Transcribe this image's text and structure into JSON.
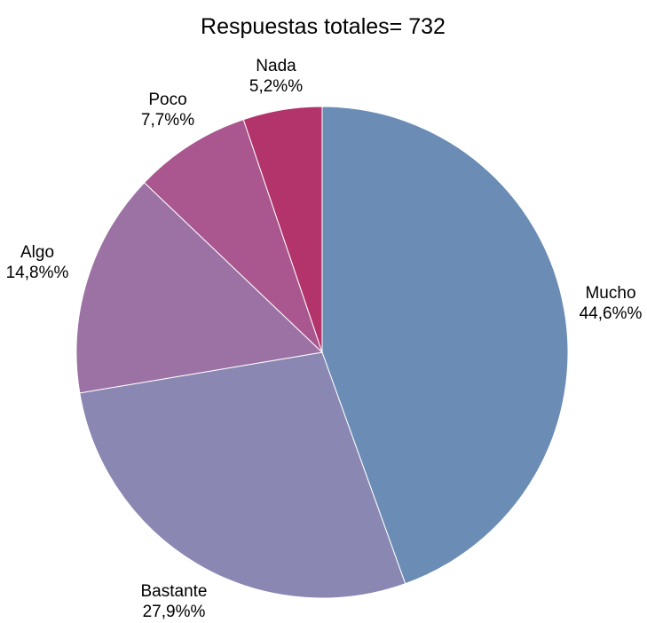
{
  "chart_data": {
    "type": "pie",
    "title": "Respuestas totales= 732",
    "start_angle_deg": 0,
    "direction": "clockwise",
    "legend": "none",
    "slices": [
      {
        "label": "Mucho",
        "value": 44.6,
        "value_label": "44,6%%",
        "color": "#6b8db5"
      },
      {
        "label": "Bastante",
        "value": 27.9,
        "value_label": "27,9%%",
        "color": "#8a87b3"
      },
      {
        "label": "Algo",
        "value": 14.8,
        "value_label": "14,8%%",
        "color": "#9c72a4"
      },
      {
        "label": "Poco",
        "value": 7.7,
        "value_label": "7,7%%",
        "color": "#a9578e"
      },
      {
        "label": "Nada",
        "value": 5.2,
        "value_label": "5,2%%",
        "color": "#b3336b"
      }
    ]
  }
}
